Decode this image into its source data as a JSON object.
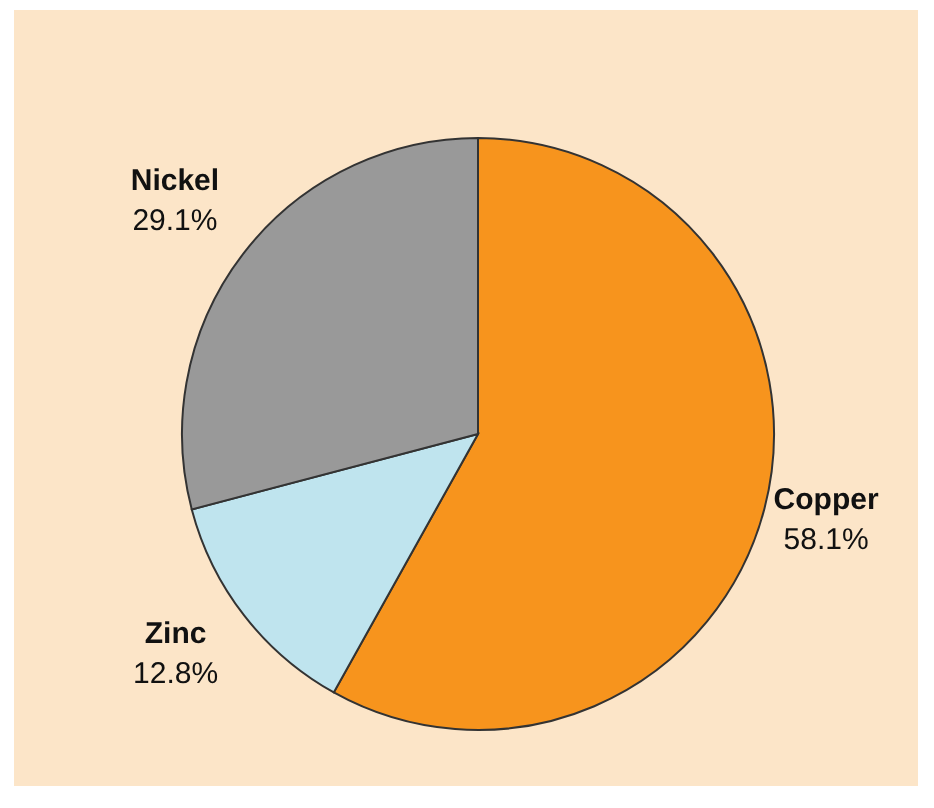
{
  "chart_data": {
    "type": "pie",
    "categories": [
      "Copper",
      "Zinc",
      "Nickel"
    ],
    "values": [
      58.1,
      12.8,
      29.1
    ],
    "colors": [
      "#f7941d",
      "#bfe4ee",
      "#999999"
    ],
    "value_labels": [
      "58.1%",
      "12.8%",
      "29.1%"
    ],
    "legend": false
  }
}
